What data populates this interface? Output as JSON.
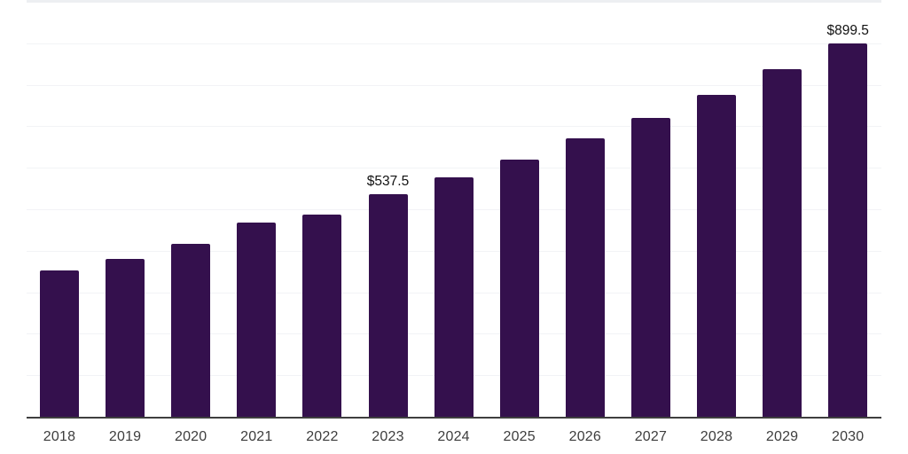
{
  "chart_data": {
    "type": "bar",
    "title": "",
    "xlabel": "",
    "ylabel": "",
    "categories": [
      "2018",
      "2019",
      "2020",
      "2021",
      "2022",
      "2023",
      "2024",
      "2025",
      "2026",
      "2027",
      "2028",
      "2029",
      "2030"
    ],
    "values": [
      352,
      380,
      416,
      469,
      487,
      537.5,
      576,
      620,
      670,
      720,
      775,
      837,
      899.5
    ],
    "data_labels": [
      {
        "category": "2023",
        "text": "$537.5"
      },
      {
        "category": "2030",
        "text": "$899.5"
      }
    ],
    "ylim": [
      0,
      1000
    ],
    "gridline_step": 100,
    "grid": "horizontal, faint, no y-axis tick labels",
    "legend_position": "none",
    "colors": {
      "bar": "#34104d",
      "axis_line": "#3f3f3f",
      "gridline": "#f2f3f6",
      "top_border": "#edeff2",
      "x_label_text": "#3d3d3d",
      "data_label_text": "#121212",
      "background": "#ffffff"
    }
  }
}
